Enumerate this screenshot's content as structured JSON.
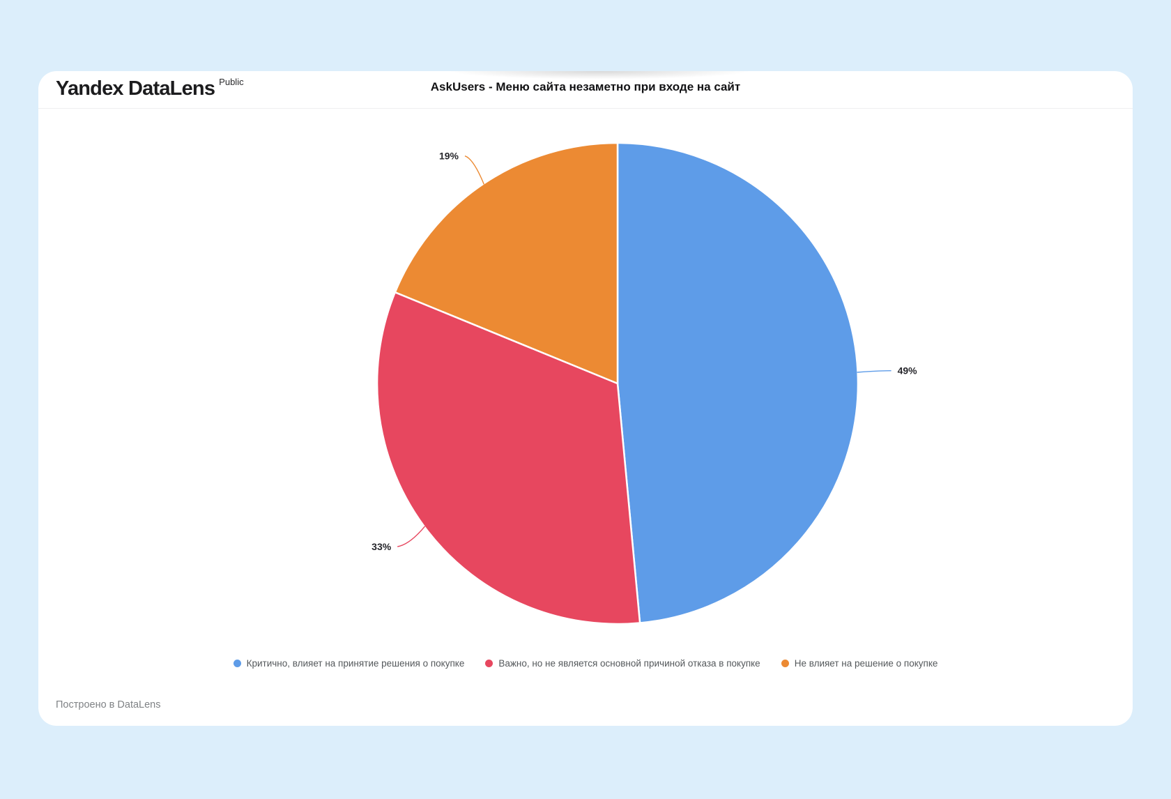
{
  "app": {
    "logo": "Yandex DataLens",
    "badge": "Public",
    "footer": "Построено в DataLens"
  },
  "chart_data": {
    "type": "pie",
    "title": "AskUsers - Меню сайта незаметно при входе на сайт",
    "legend_position": "bottom",
    "start_angle_deg": 0,
    "direction": "clockwise",
    "slices": [
      {
        "label": "Критично, влияет на принятие решения о покупке",
        "value": 49,
        "percent_label": "49%",
        "color": "#5E9CE8"
      },
      {
        "label": "Важно, но не является основной причиной отказа в покупке",
        "value": 33,
        "percent_label": "33%",
        "color": "#E7475F"
      },
      {
        "label": "Не влияет на решение о покупке",
        "value": 19,
        "percent_label": "19%",
        "color": "#EC8A33"
      }
    ]
  }
}
